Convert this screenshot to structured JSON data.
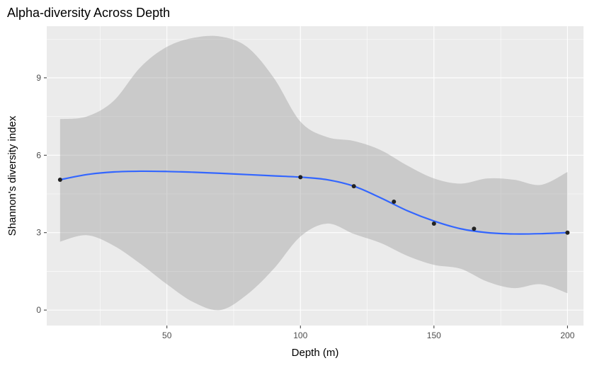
{
  "chart_data": {
    "type": "scatter",
    "title": "Alpha-diversity Across Depth",
    "xlabel": "Depth (m)",
    "ylabel": "Shannon's diversity index",
    "xlim": [
      5,
      206
    ],
    "ylim": [
      -0.6,
      11.0
    ],
    "x_ticks": [
      50,
      100,
      150,
      200
    ],
    "y_ticks": [
      0,
      3,
      6,
      9
    ],
    "x_minor": [
      25,
      75,
      125,
      175
    ],
    "y_minor": [
      1.5,
      4.5,
      7.5,
      10.5
    ],
    "grid": true,
    "legend": "none",
    "colors": {
      "panel": "#ebebeb",
      "line": "#3366ff",
      "band": "#999999",
      "point": "#222222"
    },
    "points": [
      {
        "x": 10,
        "y": 5.05
      },
      {
        "x": 100,
        "y": 5.15
      },
      {
        "x": 120,
        "y": 4.8
      },
      {
        "x": 135,
        "y": 4.2
      },
      {
        "x": 150,
        "y": 3.35
      },
      {
        "x": 165,
        "y": 3.15
      },
      {
        "x": 200,
        "y": 3.0
      }
    ],
    "smooth": {
      "method": "loess",
      "x": [
        10,
        20,
        30,
        40,
        50,
        60,
        70,
        80,
        90,
        100,
        110,
        120,
        130,
        140,
        150,
        160,
        170,
        180,
        190,
        200
      ],
      "y": [
        5.05,
        5.25,
        5.35,
        5.38,
        5.37,
        5.34,
        5.3,
        5.25,
        5.2,
        5.15,
        5.05,
        4.8,
        4.35,
        3.85,
        3.45,
        3.15,
        3.0,
        2.95,
        2.96,
        3.0
      ],
      "lower": [
        2.65,
        2.9,
        2.5,
        1.8,
        1.0,
        0.3,
        0.0,
        0.6,
        1.6,
        2.85,
        3.35,
        2.95,
        2.6,
        2.1,
        1.75,
        1.6,
        1.1,
        0.85,
        1.0,
        0.65
      ],
      "upper": [
        7.4,
        7.5,
        8.1,
        9.4,
        10.2,
        10.55,
        10.6,
        10.2,
        9.0,
        7.3,
        6.7,
        6.55,
        6.2,
        5.6,
        5.1,
        4.9,
        5.1,
        5.05,
        4.85,
        5.35
      ]
    }
  }
}
